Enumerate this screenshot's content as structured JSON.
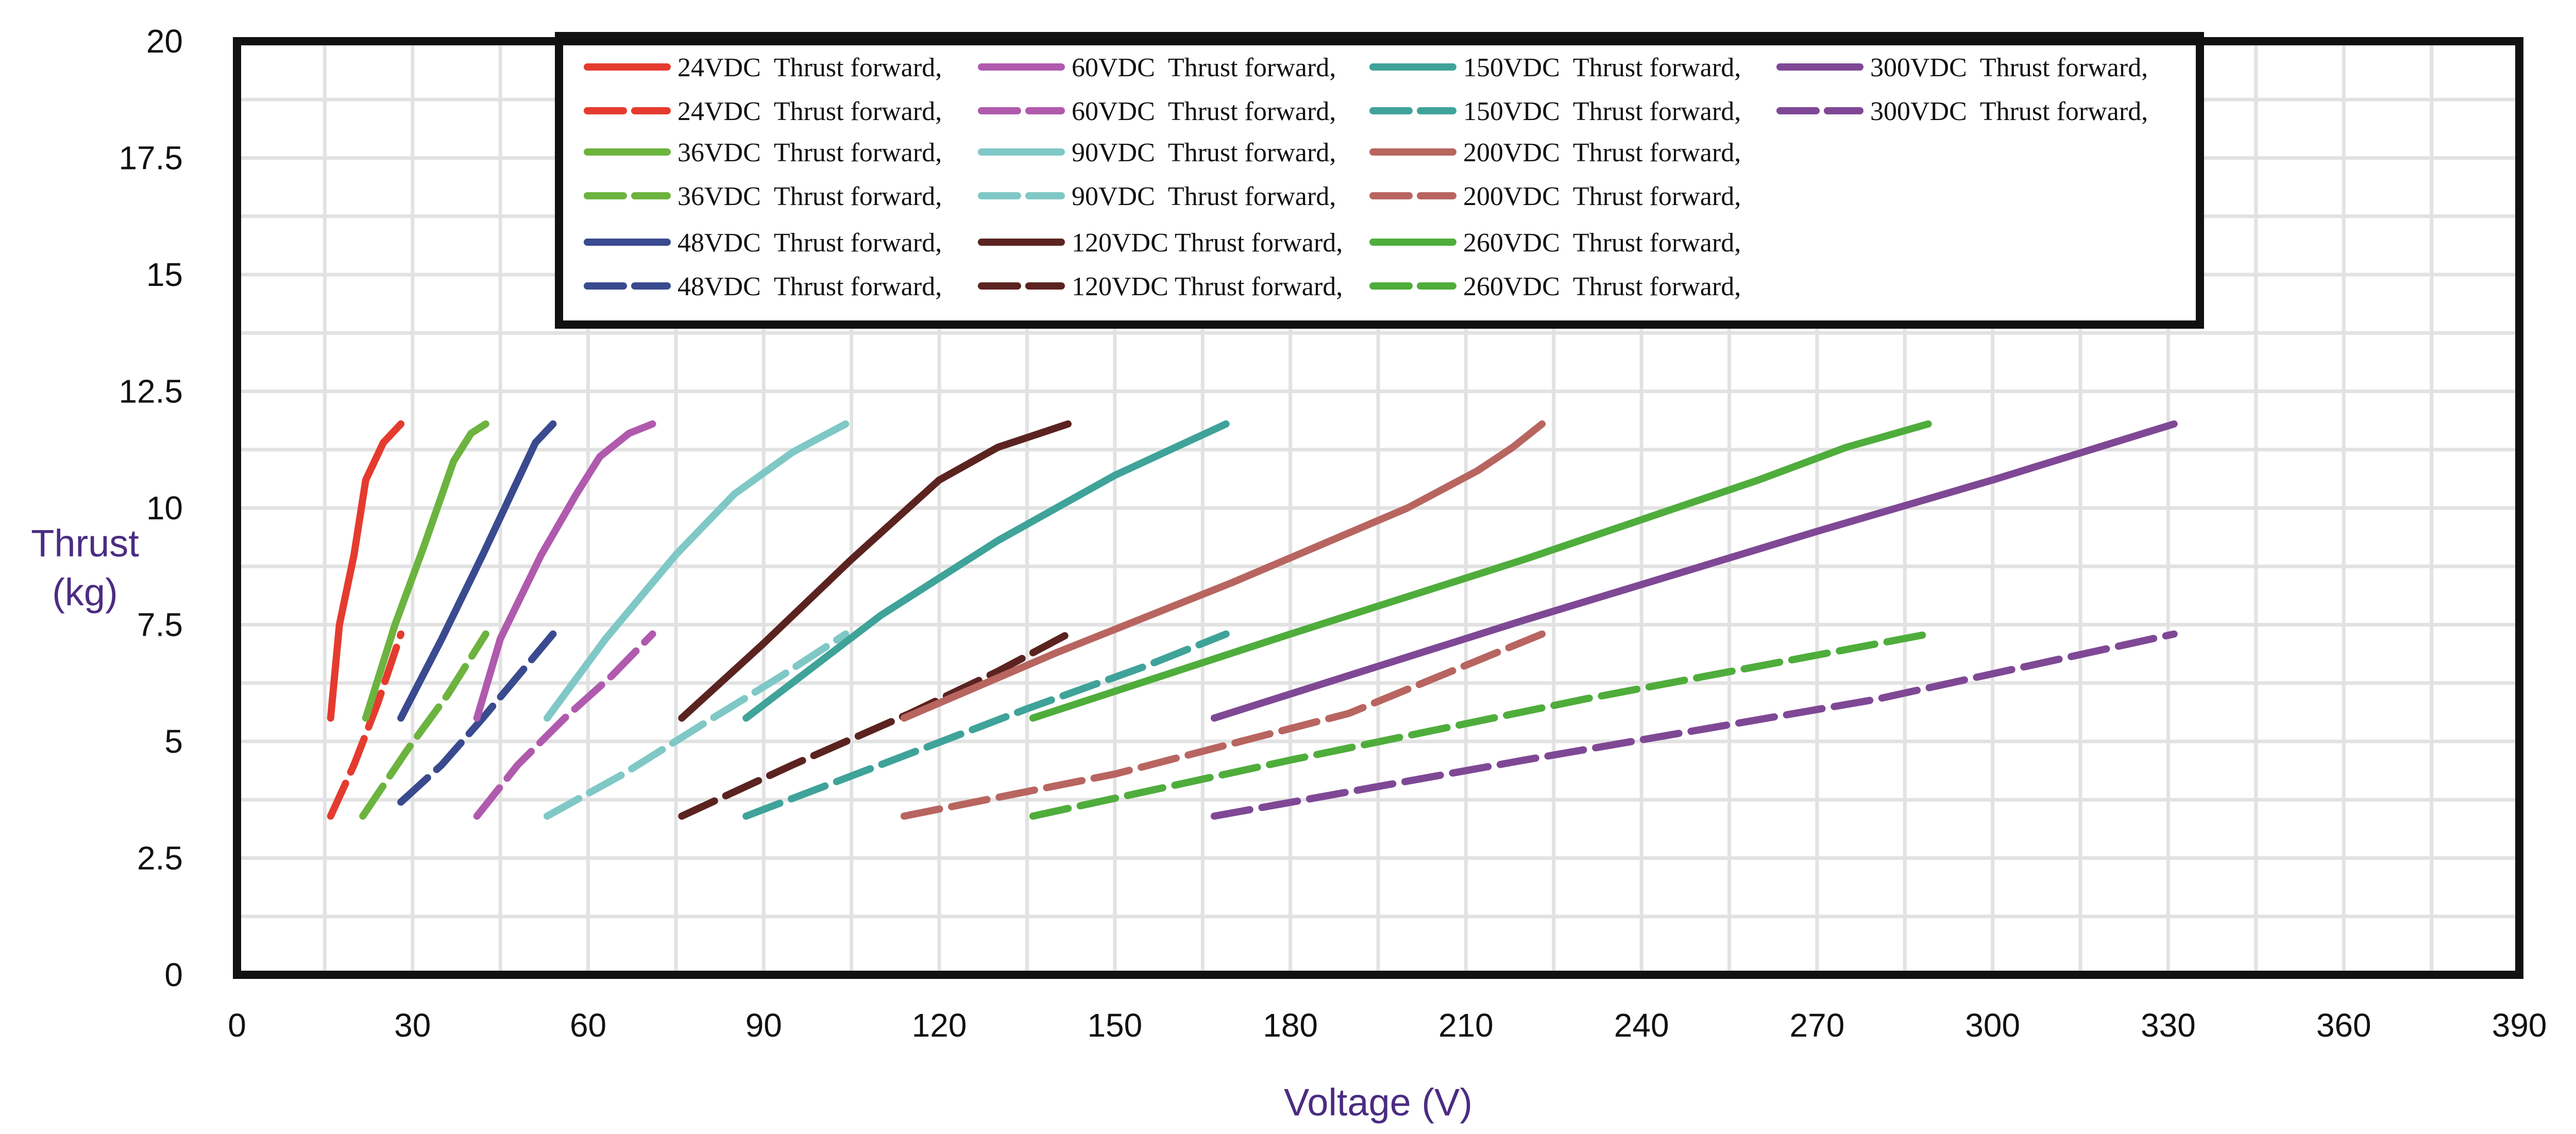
{
  "chart_data": {
    "type": "line",
    "title": "",
    "xlabel": "Voltage (V)",
    "ylabel_lines": [
      "Thrust",
      "(kg)"
    ],
    "xlim": [
      0,
      390
    ],
    "ylim": [
      0,
      20
    ],
    "x_ticks": [
      "0",
      "30",
      "60",
      "90",
      "120",
      "150",
      "180",
      "210",
      "240",
      "270",
      "300",
      "330",
      "360",
      "390"
    ],
    "y_ticks": [
      "0",
      "2.5",
      "5",
      "7.5",
      "10",
      "12.5",
      "15",
      "17.5",
      "20"
    ],
    "grid": true,
    "legend_placement": "top, inside plot, 4 columns",
    "colors": {
      "v24": "#e53b2f",
      "v36": "#6cb33f",
      "v48": "#3a4a8f",
      "v60": "#b05aae",
      "v90": "#7fc8c6",
      "v120": "#5b2320",
      "v150": "#3fa39a",
      "v200": "#b86560",
      "v260": "#4fad3c",
      "v300": "#7f4895"
    },
    "series": [
      {
        "name": "24VDC  Thrust forward,",
        "color_key": "v24",
        "dashed": false,
        "points": [
          [
            16,
            5.5
          ],
          [
            17.5,
            7.5
          ],
          [
            20,
            9
          ],
          [
            22,
            10.6
          ],
          [
            25,
            11.4
          ],
          [
            28,
            11.8
          ]
        ]
      },
      {
        "name": "24VDC  Thrust forward,",
        "color_key": "v24",
        "dashed": true,
        "points": [
          [
            16,
            3.4
          ],
          [
            20,
            4.5
          ],
          [
            24,
            5.8
          ],
          [
            28,
            7.3
          ]
        ]
      },
      {
        "name": "36VDC  Thrust forward,",
        "color_key": "v36",
        "dashed": false,
        "points": [
          [
            22,
            5.5
          ],
          [
            27,
            7.5
          ],
          [
            32,
            9.2
          ],
          [
            37,
            11
          ],
          [
            40,
            11.6
          ],
          [
            42.5,
            11.8
          ]
        ]
      },
      {
        "name": "36VDC  Thrust forward,",
        "color_key": "v36",
        "dashed": true,
        "points": [
          [
            21.5,
            3.4
          ],
          [
            29,
            4.8
          ],
          [
            36,
            6
          ],
          [
            42.5,
            7.3
          ]
        ]
      },
      {
        "name": "48VDC  Thrust forward,",
        "color_key": "v48",
        "dashed": false,
        "points": [
          [
            28,
            5.5
          ],
          [
            35,
            7.2
          ],
          [
            42,
            9
          ],
          [
            48,
            10.6
          ],
          [
            51,
            11.4
          ],
          [
            54,
            11.8
          ]
        ]
      },
      {
        "name": "48VDC  Thrust forward,",
        "color_key": "v48",
        "dashed": true,
        "points": [
          [
            28,
            3.7
          ],
          [
            35,
            4.5
          ],
          [
            42,
            5.5
          ],
          [
            48,
            6.4
          ],
          [
            54,
            7.3
          ]
        ]
      },
      {
        "name": "60VDC  Thrust forward,",
        "color_key": "v60",
        "dashed": false,
        "points": [
          [
            41,
            5.5
          ],
          [
            45,
            7.2
          ],
          [
            52,
            9
          ],
          [
            58,
            10.3
          ],
          [
            62,
            11.1
          ],
          [
            67,
            11.6
          ],
          [
            71,
            11.8
          ]
        ]
      },
      {
        "name": "60VDC  Thrust forward,",
        "color_key": "v60",
        "dashed": true,
        "points": [
          [
            41,
            3.4
          ],
          [
            48,
            4.5
          ],
          [
            56,
            5.5
          ],
          [
            64,
            6.4
          ],
          [
            71,
            7.3
          ]
        ]
      },
      {
        "name": "90VDC  Thrust forward,",
        "color_key": "v90",
        "dashed": false,
        "points": [
          [
            53,
            5.5
          ],
          [
            63,
            7.2
          ],
          [
            75,
            9
          ],
          [
            85,
            10.3
          ],
          [
            95,
            11.2
          ],
          [
            104,
            11.8
          ]
        ]
      },
      {
        "name": "90VDC  Thrust forward,",
        "color_key": "v90",
        "dashed": true,
        "points": [
          [
            53,
            3.4
          ],
          [
            66,
            4.3
          ],
          [
            80,
            5.4
          ],
          [
            93,
            6.4
          ],
          [
            104,
            7.3
          ]
        ]
      },
      {
        "name": "120VDC Thrust forward,",
        "color_key": "v120",
        "dashed": false,
        "points": [
          [
            76,
            5.5
          ],
          [
            90,
            7.1
          ],
          [
            105,
            8.9
          ],
          [
            120,
            10.6
          ],
          [
            130,
            11.3
          ],
          [
            142,
            11.8
          ]
        ]
      },
      {
        "name": "120VDC Thrust forward,",
        "color_key": "v120",
        "dashed": true,
        "points": [
          [
            76,
            3.4
          ],
          [
            95,
            4.5
          ],
          [
            115,
            5.6
          ],
          [
            130,
            6.5
          ],
          [
            142,
            7.3
          ]
        ]
      },
      {
        "name": "150VDC  Thrust forward,",
        "color_key": "v150",
        "dashed": false,
        "points": [
          [
            87,
            5.5
          ],
          [
            110,
            7.7
          ],
          [
            130,
            9.3
          ],
          [
            150,
            10.7
          ],
          [
            169,
            11.8
          ]
        ]
      },
      {
        "name": "150VDC  Thrust forward,",
        "color_key": "v150",
        "dashed": true,
        "points": [
          [
            87,
            3.4
          ],
          [
            110,
            4.5
          ],
          [
            135,
            5.7
          ],
          [
            155,
            6.6
          ],
          [
            169,
            7.3
          ]
        ]
      },
      {
        "name": "200VDC  Thrust forward,",
        "color_key": "v200",
        "dashed": false,
        "points": [
          [
            114,
            5.5
          ],
          [
            140,
            6.9
          ],
          [
            170,
            8.4
          ],
          [
            200,
            10
          ],
          [
            212,
            10.8
          ],
          [
            218,
            11.3
          ],
          [
            223,
            11.8
          ]
        ]
      },
      {
        "name": "200VDC  Thrust forward,",
        "color_key": "v200",
        "dashed": true,
        "points": [
          [
            114,
            3.4
          ],
          [
            150,
            4.3
          ],
          [
            190,
            5.6
          ],
          [
            223,
            7.3
          ]
        ]
      },
      {
        "name": "260VDC  Thrust forward,",
        "color_key": "v260",
        "dashed": false,
        "points": [
          [
            136,
            5.5
          ],
          [
            180,
            7.3
          ],
          [
            220,
            8.9
          ],
          [
            260,
            10.6
          ],
          [
            275,
            11.3
          ],
          [
            289,
            11.8
          ]
        ]
      },
      {
        "name": "260VDC  Thrust forward,",
        "color_key": "v260",
        "dashed": true,
        "points": [
          [
            136,
            3.4
          ],
          [
            180,
            4.6
          ],
          [
            230,
            5.9
          ],
          [
            289,
            7.3
          ]
        ]
      },
      {
        "name": "300VDC  Thrust forward,",
        "color_key": "v300",
        "dashed": false,
        "points": [
          [
            167,
            5.5
          ],
          [
            220,
            7.6
          ],
          [
            270,
            9.5
          ],
          [
            300,
            10.6
          ],
          [
            331,
            11.8
          ]
        ]
      },
      {
        "name": "300VDC  Thrust forward,",
        "color_key": "v300",
        "dashed": true,
        "points": [
          [
            167,
            3.4
          ],
          [
            220,
            4.6
          ],
          [
            280,
            5.9
          ],
          [
            331,
            7.3
          ]
        ]
      }
    ]
  }
}
